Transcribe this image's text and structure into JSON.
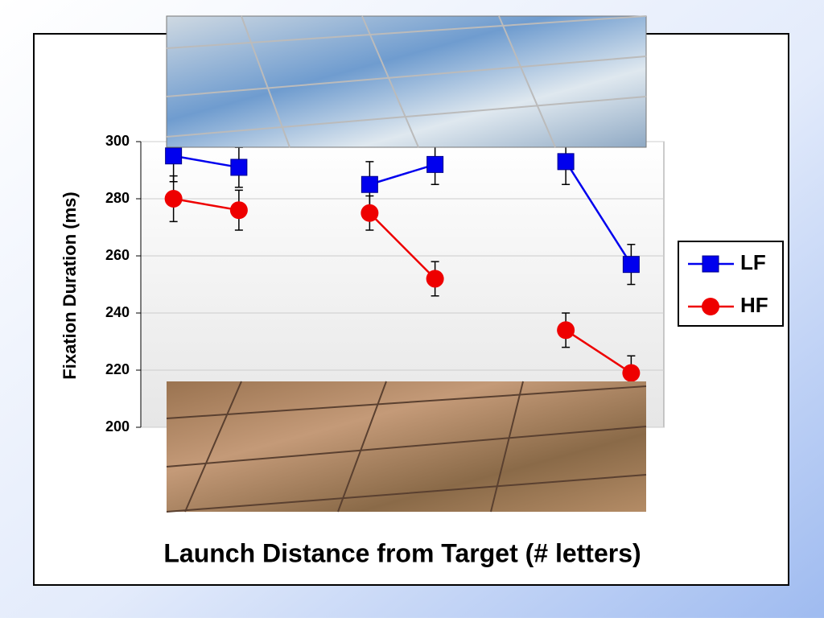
{
  "chart_data": {
    "type": "line",
    "ylabel": "Fixation Duration (ms)",
    "xlabel": "Launch Distance from Target (# letters)",
    "categories": [
      null,
      null,
      null,
      null,
      null,
      null,
      null,
      null
    ],
    "series": [
      {
        "name": "LF",
        "color": "#0000ee",
        "marker": "square",
        "values": [
          295,
          291,
          null,
          285,
          292,
          null,
          293,
          257
        ],
        "errors": [
          9,
          7,
          null,
          8,
          7,
          null,
          8,
          7
        ]
      },
      {
        "name": "HF",
        "color": "#ee0000",
        "marker": "circle",
        "values": [
          280,
          276,
          null,
          275,
          252,
          null,
          234,
          219
        ],
        "errors": [
          8,
          7,
          null,
          6,
          6,
          null,
          6,
          6
        ]
      }
    ],
    "ylim": [
      200,
      300
    ],
    "yticks": [
      200,
      220,
      240,
      260,
      280,
      300
    ],
    "grid": true,
    "legend": "right"
  }
}
